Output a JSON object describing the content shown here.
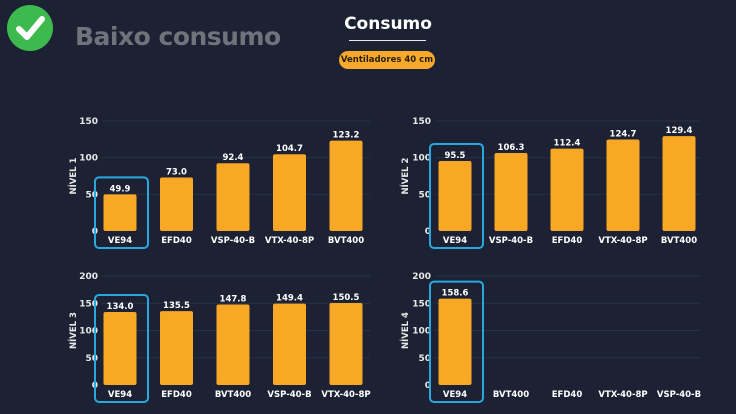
{
  "header": {
    "status_label": "Baixo consumo",
    "status_icon": "check-circle-icon",
    "status_color": "#3dba4e",
    "title": "Consumo",
    "category_pill": "Ventiladores 40 cm"
  },
  "colors": {
    "bar": "#f9a825",
    "highlight": "#29a8e0",
    "background": "#1c2233"
  },
  "chart_data": [
    {
      "type": "bar",
      "ylabel": "NÍVEL 1",
      "ylim": [
        0,
        150
      ],
      "yticks": [
        0,
        50,
        100,
        150
      ],
      "grid": true,
      "categories": [
        "VE94",
        "EFD40",
        "VSP-40-B",
        "VTX-40-8P",
        "BVT400"
      ],
      "values": [
        49.9,
        73.0,
        92.4,
        104.7,
        123.2
      ],
      "value_labels": [
        "49.9",
        "73.0",
        "92.4",
        "104.7",
        "123.2"
      ],
      "highlighted": "VE94"
    },
    {
      "type": "bar",
      "ylabel": "NÍVEL 2",
      "ylim": [
        0,
        150
      ],
      "yticks": [
        0,
        50,
        100,
        150
      ],
      "grid": true,
      "categories": [
        "VE94",
        "VSP-40-B",
        "EFD40",
        "VTX-40-8P",
        "BVT400"
      ],
      "values": [
        95.5,
        106.3,
        112.4,
        124.7,
        129.4
      ],
      "value_labels": [
        "95.5",
        "106.3",
        "112.4",
        "124.7",
        "129.4"
      ],
      "highlighted": "VE94"
    },
    {
      "type": "bar",
      "ylabel": "NÍVEL 3",
      "ylim": [
        0,
        200
      ],
      "yticks": [
        0,
        50,
        100,
        150,
        200
      ],
      "grid": true,
      "categories": [
        "VE94",
        "EFD40",
        "BVT400",
        "VSP-40-B",
        "VTX-40-8P"
      ],
      "values": [
        134.0,
        135.5,
        147.8,
        149.4,
        150.5
      ],
      "value_labels": [
        "134.0",
        "135.5",
        "147.8",
        "149.4",
        "150.5"
      ],
      "highlighted": "VE94"
    },
    {
      "type": "bar",
      "ylabel": "NÍVEL 4",
      "ylim": [
        0,
        200
      ],
      "yticks": [
        0,
        50,
        100,
        150,
        200
      ],
      "grid": true,
      "categories": [
        "VE94",
        "BVT400",
        "EFD40",
        "VTX-40-8P",
        "VSP-40-B"
      ],
      "values": [
        158.6,
        null,
        null,
        null,
        null
      ],
      "value_labels": [
        "158.6",
        "",
        "",
        "",
        ""
      ],
      "highlighted": "VE94"
    }
  ]
}
